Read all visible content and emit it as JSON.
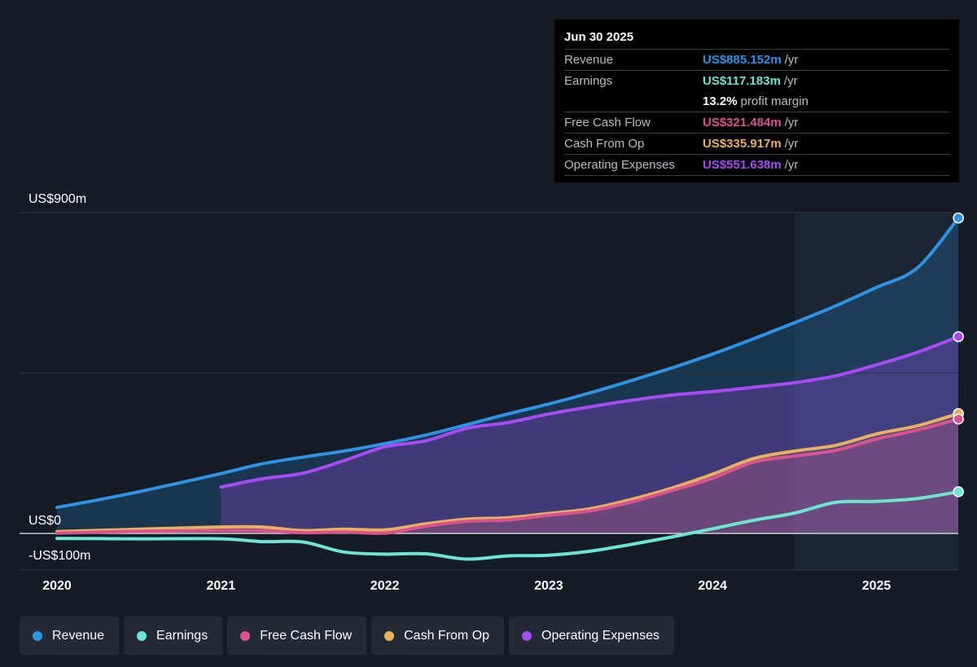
{
  "tooltip": {
    "date": "Jun 30 2025",
    "rows": [
      {
        "label": "Revenue",
        "value": "US$885.152m",
        "unit": "/yr",
        "color": "#2e93e3"
      },
      {
        "label": "Earnings",
        "value": "US$117.183m",
        "unit": "/yr",
        "color": "#6de5d0"
      },
      {
        "label": "",
        "value": "13.2%",
        "unit": "profit margin",
        "color": "#ffffff"
      },
      {
        "label": "Free Cash Flow",
        "value": "US$321.484m",
        "unit": "/yr",
        "color": "#d9538f"
      },
      {
        "label": "Cash From Op",
        "value": "US$335.917m",
        "unit": "/yr",
        "color": "#e9b060"
      },
      {
        "label": "Operating Expenses",
        "value": "US$551.638m",
        "unit": "/yr",
        "color": "#a64cf2"
      }
    ]
  },
  "legend": [
    {
      "label": "Revenue",
      "color": "#2e93e3"
    },
    {
      "label": "Earnings",
      "color": "#6de5d0"
    },
    {
      "label": "Free Cash Flow",
      "color": "#d9538f"
    },
    {
      "label": "Cash From Op",
      "color": "#e9b060"
    },
    {
      "label": "Operating Expenses",
      "color": "#a64cf2"
    }
  ],
  "chart_data": {
    "type": "area",
    "title": "",
    "xlabel": "",
    "ylabel": "",
    "y_tick_labels": [
      {
        "value": 900,
        "label": "US$900m"
      },
      {
        "value": 0,
        "label": "US$0"
      },
      {
        "value": -100,
        "label": "-US$100m"
      }
    ],
    "x_tick_labels": [
      "2020",
      "2021",
      "2022",
      "2023",
      "2024",
      "2025"
    ],
    "x_tick_values": [
      2020,
      2021,
      2022,
      2023,
      2024,
      2025
    ],
    "xlim": [
      2019.77,
      2025.5
    ],
    "ylim": [
      -100,
      900
    ],
    "grid": true,
    "highlight_from": 2024.5,
    "series": [
      {
        "name": "Revenue",
        "color": "#2e93e3",
        "x": [
          2020.0,
          2020.25,
          2020.5,
          2020.75,
          2021.0,
          2021.25,
          2021.5,
          2021.75,
          2022.0,
          2022.25,
          2022.5,
          2022.75,
          2023.0,
          2023.25,
          2023.5,
          2023.75,
          2024.0,
          2024.25,
          2024.5,
          2024.75,
          2025.0,
          2025.25,
          2025.5
        ],
        "y": [
          73,
          94,
          117,
          142,
          168,
          195,
          214,
          231,
          252,
          276,
          305,
          335,
          363,
          394,
          428,
          464,
          503,
          546,
          591,
          638,
          690,
          745,
          885
        ]
      },
      {
        "name": "Earnings",
        "color": "#6de5d0",
        "x": [
          2020.0,
          2020.5,
          2021.0,
          2021.25,
          2021.5,
          2021.75,
          2022.0,
          2022.25,
          2022.5,
          2022.75,
          2023.0,
          2023.25,
          2023.5,
          2023.75,
          2024.0,
          2024.25,
          2024.5,
          2024.75,
          2025.0,
          2025.25,
          2025.5
        ],
        "y": [
          -14,
          -15,
          -15,
          -23,
          -24,
          -52,
          -58,
          -57,
          -72,
          -63,
          -61,
          -50,
          -31,
          -10,
          13,
          37,
          57,
          87,
          90,
          98,
          117
        ]
      },
      {
        "name": "Free Cash Flow",
        "color": "#d9538f",
        "x": [
          2020.0,
          2020.5,
          2021.0,
          2021.25,
          2021.5,
          2021.75,
          2022.0,
          2022.25,
          2022.5,
          2022.75,
          2023.0,
          2023.25,
          2023.5,
          2023.75,
          2024.0,
          2024.25,
          2024.5,
          2024.75,
          2025.0,
          2025.25,
          2025.5
        ],
        "y": [
          1,
          6,
          8,
          8,
          2,
          4,
          1,
          20,
          34,
          38,
          51,
          63,
          88,
          120,
          155,
          200,
          217,
          233,
          265,
          290,
          321
        ]
      },
      {
        "name": "Cash From Op",
        "color": "#e9b060",
        "x": [
          2020.0,
          2020.5,
          2021.0,
          2021.25,
          2021.5,
          2021.75,
          2022.0,
          2022.25,
          2022.5,
          2022.75,
          2023.0,
          2023.25,
          2023.5,
          2023.75,
          2024.0,
          2024.25,
          2024.5,
          2024.75,
          2025.0,
          2025.25,
          2025.5
        ],
        "y": [
          5,
          12,
          18,
          18,
          8,
          12,
          10,
          27,
          40,
          44,
          56,
          69,
          95,
          127,
          166,
          210,
          231,
          247,
          279,
          302,
          336
        ]
      },
      {
        "name": "Operating Expenses",
        "color": "#a64cf2",
        "x": [
          2021.0,
          2021.25,
          2021.5,
          2021.75,
          2022.0,
          2022.25,
          2022.5,
          2022.75,
          2023.0,
          2023.25,
          2023.5,
          2023.75,
          2024.0,
          2024.25,
          2024.5,
          2024.75,
          2025.0,
          2025.25,
          2025.5
        ],
        "y": [
          130,
          153,
          169,
          204,
          243,
          260,
          295,
          311,
          335,
          355,
          373,
          388,
          398,
          410,
          423,
          442,
          473,
          508,
          552
        ]
      }
    ]
  }
}
